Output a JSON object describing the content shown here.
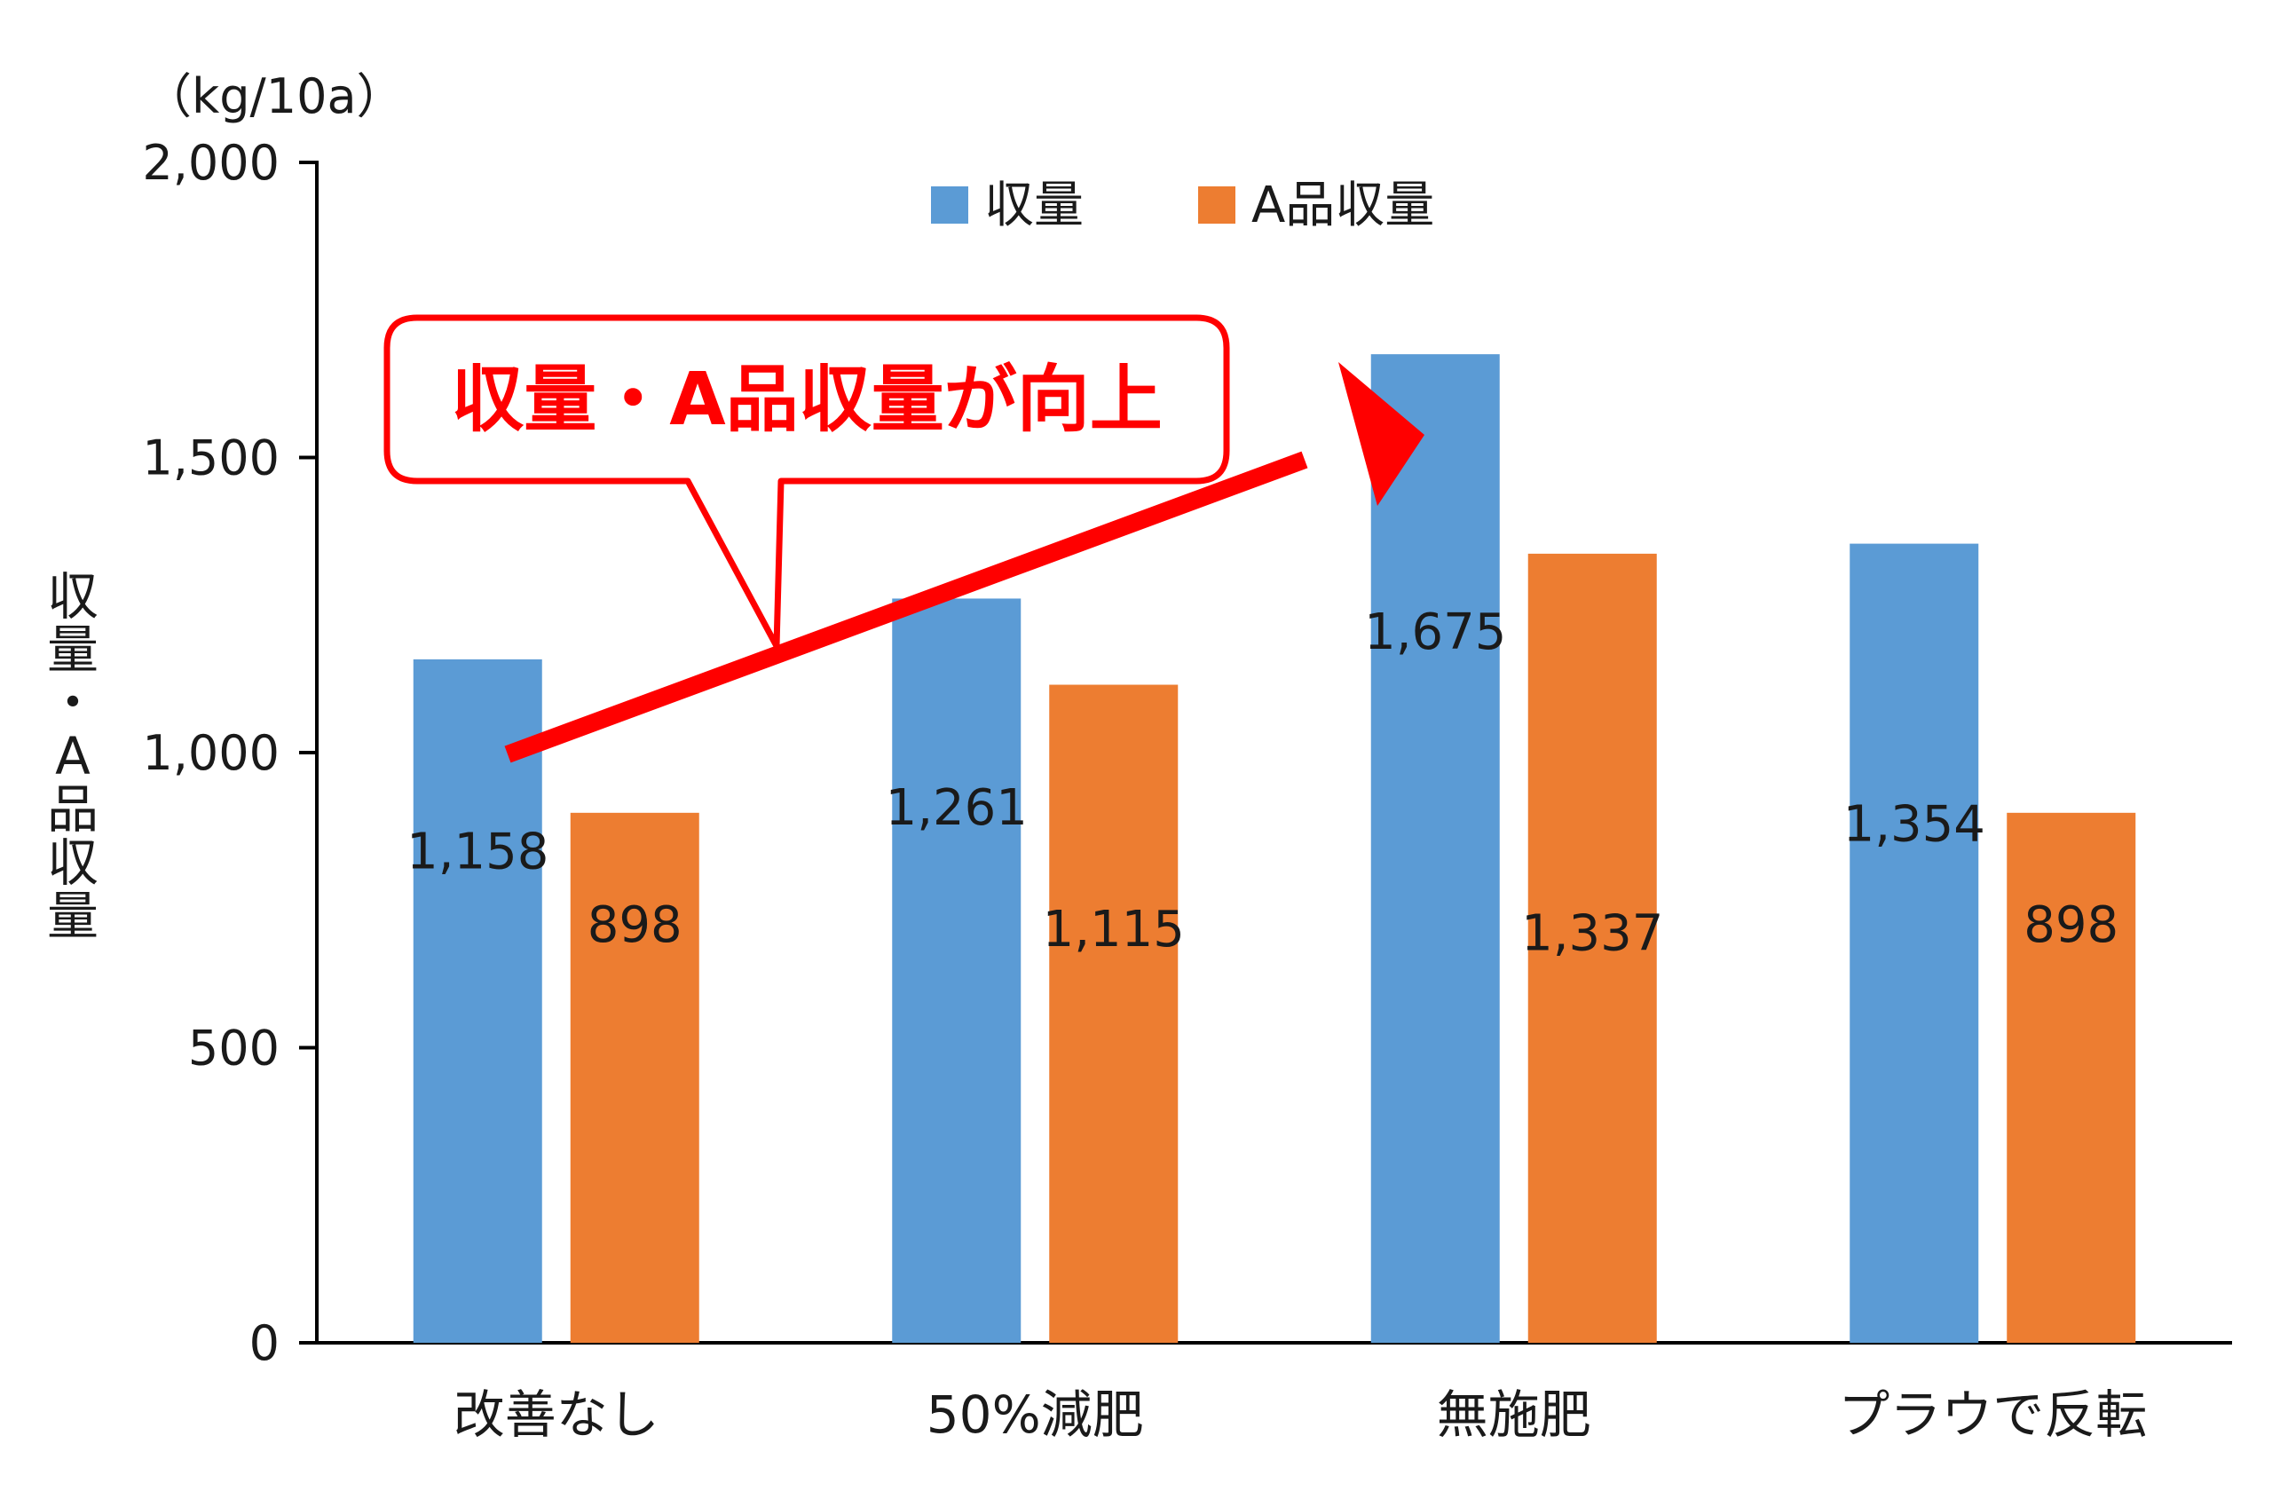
{
  "chart_data": {
    "type": "bar",
    "unit": "（kg/10a）",
    "ylabel": "収量・A品収量",
    "categories": [
      "改善なし",
      "50%減肥",
      "無施肥",
      "プラウで反転"
    ],
    "series": [
      {
        "name": "収量",
        "values": [
          1158,
          1261,
          1675,
          1354
        ],
        "labels": [
          "1,158",
          "1,261",
          "1,675",
          "1,354"
        ],
        "color": "#5b9bd5"
      },
      {
        "name": "A品収量",
        "values": [
          898,
          1115,
          1337,
          898
        ],
        "labels": [
          "898",
          "1,115",
          "1,337",
          "898"
        ],
        "color": "#ed7d31"
      }
    ],
    "ylim": [
      0,
      2000
    ],
    "yticks": [
      0,
      500,
      1000,
      1500,
      2000
    ],
    "ytick_labels": [
      "0",
      "500",
      "1,000",
      "1,500",
      "2,000"
    ],
    "grid": false,
    "legend": "top-center",
    "annotation": {
      "text": "収量・A品収量が向上",
      "color": "#ff0000"
    }
  }
}
